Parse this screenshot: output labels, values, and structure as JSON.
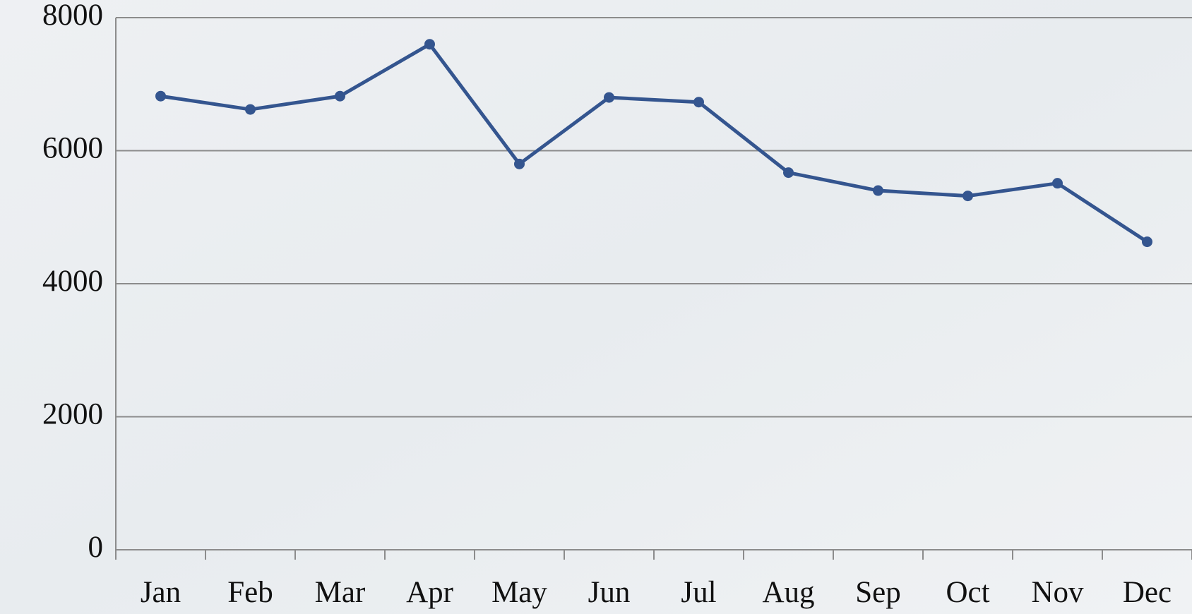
{
  "chart_data": {
    "type": "line",
    "categories": [
      "Jan",
      "Feb",
      "Mar",
      "Apr",
      "May",
      "Jun",
      "Jul",
      "Aug",
      "Sep",
      "Oct",
      "Nov",
      "Dec"
    ],
    "series": [
      {
        "color": "#34558f",
        "values": [
          6820,
          6620,
          6820,
          7600,
          5800,
          6800,
          6730,
          5670,
          5400,
          5320,
          5510,
          4630
        ]
      }
    ],
    "ylim": [
      0,
      8000
    ],
    "yticks": [
      0,
      2000,
      4000,
      6000,
      8000
    ],
    "grid": true
  }
}
